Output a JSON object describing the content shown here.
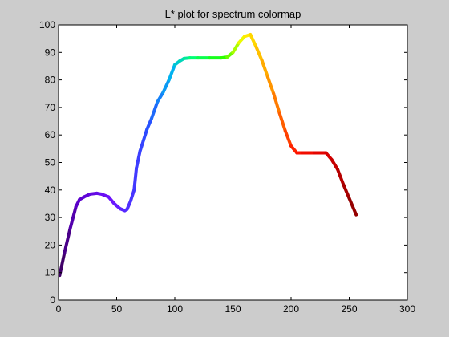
{
  "chart_data": {
    "type": "line",
    "title": "L* plot for spectrum colormap",
    "xlabel": "",
    "ylabel": "",
    "xlim": [
      0,
      300
    ],
    "ylim": [
      0,
      100
    ],
    "xticks": [
      0,
      50,
      100,
      150,
      200,
      250,
      300
    ],
    "yticks": [
      0,
      10,
      20,
      30,
      40,
      50,
      60,
      70,
      80,
      90,
      100
    ],
    "grid": false,
    "legend": "none",
    "series": [
      {
        "color_encoding": "spectrum colormap (dark violet → blue → cyan → green → yellow → orange → red → dark red)",
        "points": [
          [
            1,
            9
          ],
          [
            5,
            17
          ],
          [
            10,
            26
          ],
          [
            15,
            34
          ],
          [
            18,
            36.5
          ],
          [
            22,
            37.5
          ],
          [
            27,
            38.5
          ],
          [
            33,
            38.8
          ],
          [
            37,
            38.5
          ],
          [
            43,
            37.5
          ],
          [
            48,
            35
          ],
          [
            53,
            33.2
          ],
          [
            57,
            32.5
          ],
          [
            59,
            33
          ],
          [
            62,
            36
          ],
          [
            65,
            40
          ],
          [
            67,
            48
          ],
          [
            70,
            54
          ],
          [
            73,
            58
          ],
          [
            76,
            62
          ],
          [
            80,
            66
          ],
          [
            85,
            72
          ],
          [
            90,
            75.5
          ],
          [
            95,
            80
          ],
          [
            100,
            85.5
          ],
          [
            104,
            86.8
          ],
          [
            108,
            87.8
          ],
          [
            113,
            88
          ],
          [
            120,
            88
          ],
          [
            130,
            88
          ],
          [
            140,
            88
          ],
          [
            145,
            88.3
          ],
          [
            150,
            90
          ],
          [
            155,
            93.5
          ],
          [
            160,
            95.8
          ],
          [
            165,
            96.5
          ],
          [
            170,
            92
          ],
          [
            175,
            87
          ],
          [
            180,
            81
          ],
          [
            185,
            75
          ],
          [
            190,
            68
          ],
          [
            195,
            61.5
          ],
          [
            200,
            56
          ],
          [
            205,
            53.5
          ],
          [
            210,
            53.5
          ],
          [
            220,
            53.5
          ],
          [
            230,
            53.5
          ],
          [
            235,
            51
          ],
          [
            240,
            47.5
          ],
          [
            245,
            42
          ],
          [
            250,
            37
          ],
          [
            256,
            31
          ]
        ]
      }
    ],
    "colors": {
      "figure_background": "#cccccc",
      "plot_background": "#ffffff",
      "axes": "#000000"
    }
  }
}
